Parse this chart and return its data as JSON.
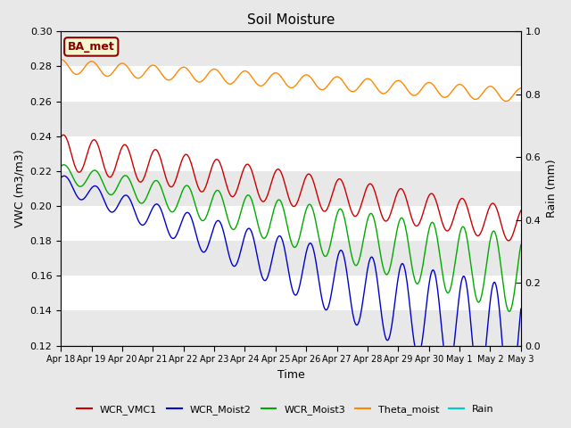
{
  "title": "Soil Moisture",
  "xlabel": "Time",
  "ylabel_left": "VWC (m3/m3)",
  "ylabel_right": "Rain (mm)",
  "ylim_left": [
    0.12,
    0.3
  ],
  "ylim_right": [
    0.0,
    1.0
  ],
  "background_color": "#e8e8e8",
  "plot_bg_color": "#ffffff",
  "stripe_color": "#e8e8e8",
  "annotation_text": "BA_met",
  "annotation_color": "#8b0000",
  "annotation_bg": "#f5f5d0",
  "series_colors": {
    "WCR_VMC1": "#cc0000",
    "WCR_Moist2": "#0000cc",
    "WCR_Moist3": "#00aa00",
    "Theta_moist": "#ff8800",
    "Rain": "#00cccc"
  },
  "tick_labels": [
    "Apr 18",
    "Apr 19",
    "Apr 20",
    "Apr 21",
    "Apr 22",
    "Apr 23",
    "Apr 24",
    "Apr 25",
    "Apr 26",
    "Apr 27",
    "Apr 28",
    "Apr 29",
    "Apr 30",
    "May 1",
    "May 2",
    "May 3"
  ],
  "yticks_left": [
    0.12,
    0.14,
    0.16,
    0.18,
    0.2,
    0.22,
    0.24,
    0.26,
    0.28,
    0.3
  ],
  "yticks_right": [
    0.0,
    0.2,
    0.4,
    0.6,
    0.8,
    1.0
  ]
}
